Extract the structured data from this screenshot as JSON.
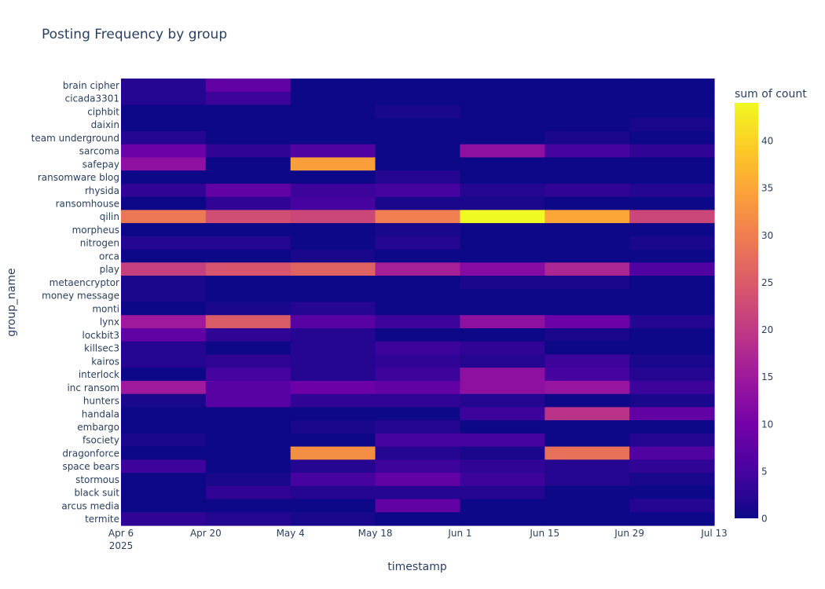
{
  "chart_data": {
    "type": "heatmap",
    "title": "Posting Frequency by group",
    "xlabel": "timestamp",
    "ylabel": "group_name",
    "x_tick_labels": [
      "Apr 6",
      "Apr 20",
      "May 4",
      "May 18",
      "Jun 1",
      "Jun 15",
      "Jun 29",
      "Jul 13"
    ],
    "x_tick_year": "2025",
    "x": [
      "2025-04-06",
      "2025-04-20",
      "2025-05-04",
      "2025-05-18",
      "2025-06-01",
      "2025-06-15",
      "2025-06-29"
    ],
    "y": [
      "brain cipher",
      "cicada3301",
      "ciphbit",
      "daixin",
      "team underground",
      "sarcoma",
      "safepay",
      "ransomware blog",
      "rhysida",
      "ransomhouse",
      "qilin",
      "morpheus",
      "nitrogen",
      "orca",
      "play",
      "metaencryptor",
      "money message",
      "monti",
      "lynx",
      "lockbit3",
      "killsec3",
      "kairos",
      "interlock",
      "inc ransom",
      "hunters",
      "handala",
      "embargo",
      "fsociety",
      "dragonforce",
      "space bears",
      "stormous",
      "black suit",
      "arcus media",
      "termite"
    ],
    "z": [
      [
        2,
        8,
        0,
        0,
        0,
        0,
        0
      ],
      [
        2,
        4,
        0,
        0,
        0,
        0,
        0
      ],
      [
        0,
        0,
        0,
        1,
        0,
        0,
        0
      ],
      [
        0,
        0,
        0,
        0,
        0,
        0,
        1
      ],
      [
        2,
        0,
        0,
        0,
        0,
        1,
        0
      ],
      [
        9,
        3,
        6,
        0,
        13,
        5,
        3
      ],
      [
        13,
        0,
        34,
        0,
        0,
        0,
        0
      ],
      [
        0,
        0,
        0,
        2,
        0,
        0,
        0
      ],
      [
        3,
        8,
        4,
        5,
        2,
        3,
        2
      ],
      [
        0,
        3,
        5,
        1,
        1,
        0,
        0
      ],
      [
        29,
        23,
        22,
        30,
        44,
        35,
        22
      ],
      [
        0,
        0,
        0,
        1,
        0,
        0,
        0
      ],
      [
        2,
        2,
        0,
        2,
        0,
        0,
        1
      ],
      [
        0,
        0,
        1,
        0,
        0,
        0,
        0
      ],
      [
        21,
        24,
        26,
        16,
        12,
        17,
        6
      ],
      [
        1,
        0,
        0,
        0,
        1,
        1,
        0
      ],
      [
        1,
        0,
        0,
        0,
        0,
        0,
        0
      ],
      [
        0,
        1,
        2,
        0,
        0,
        0,
        0
      ],
      [
        15,
        25,
        7,
        4,
        13,
        9,
        2
      ],
      [
        8,
        3,
        2,
        0,
        0,
        1,
        0
      ],
      [
        2,
        0,
        2,
        4,
        3,
        0,
        0
      ],
      [
        2,
        3,
        2,
        3,
        2,
        4,
        1
      ],
      [
        0,
        5,
        2,
        4,
        13,
        5,
        2
      ],
      [
        15,
        7,
        9,
        8,
        13,
        14,
        4
      ],
      [
        1,
        7,
        3,
        3,
        2,
        0,
        1
      ],
      [
        0,
        0,
        0,
        0,
        4,
        19,
        8
      ],
      [
        0,
        0,
        1,
        2,
        0,
        0,
        0
      ],
      [
        1,
        0,
        0,
        5,
        5,
        0,
        2
      ],
      [
        0,
        0,
        32,
        2,
        1,
        28,
        6
      ],
      [
        4,
        0,
        2,
        4,
        3,
        2,
        3
      ],
      [
        0,
        1,
        5,
        8,
        4,
        2,
        1
      ],
      [
        0,
        3,
        2,
        2,
        2,
        0,
        0
      ],
      [
        0,
        0,
        0,
        8,
        0,
        0,
        2
      ],
      [
        3,
        2,
        1,
        0,
        0,
        0,
        0
      ]
    ],
    "colorbar": {
      "title": "sum of count",
      "range": [
        0,
        44
      ],
      "ticks": [
        0,
        5,
        10,
        15,
        20,
        25,
        30,
        35,
        40
      ]
    },
    "colorscale": [
      "#0d0887",
      "#46039f",
      "#7201a8",
      "#9c179e",
      "#bd3786",
      "#d8576b",
      "#ed7953",
      "#fb9f3a",
      "#fdca26",
      "#f0f921"
    ]
  }
}
